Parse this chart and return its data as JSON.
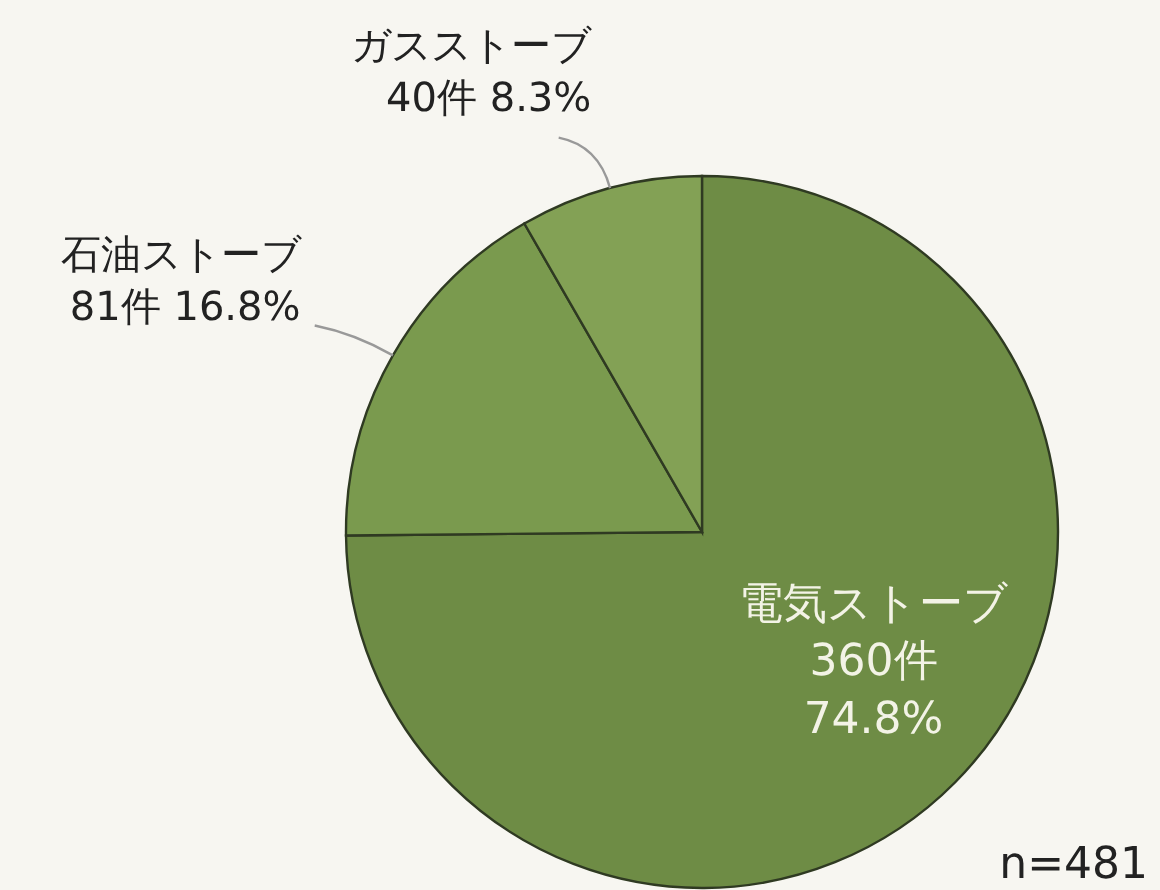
{
  "chart_data": {
    "type": "pie",
    "categories": [
      "電気ストーブ",
      "石油ストーブ",
      "ガスストーブ"
    ],
    "values": [
      360,
      81,
      40
    ],
    "value_labels": [
      "360件 74.8%",
      "81件 16.8%",
      "40件 8.3%"
    ],
    "colors": [
      "#6e8c45",
      "#7a9a4e",
      "#83a155"
    ],
    "annotations": [
      "n=481"
    ]
  }
}
